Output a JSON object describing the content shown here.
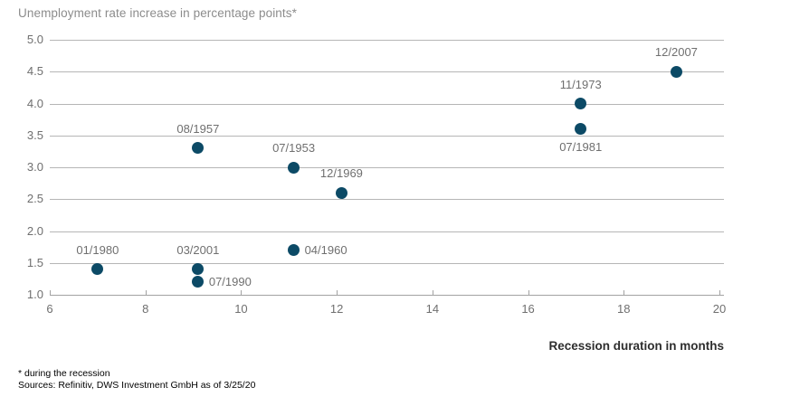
{
  "chart": {
    "title": "Unemployment rate increase in percentage points*",
    "x_axis_title": "Recession duration in months"
  },
  "footnotes": {
    "line1": "* during the recession",
    "line2": "Sources: Refinitiv, DWS Investment GmbH as of 3/25/20"
  },
  "chart_data": {
    "type": "scatter",
    "title": "Unemployment rate increase in percentage points*",
    "xlabel": "Recession duration in months",
    "ylabel": "Unemployment rate increase in percentage points",
    "xlim": [
      6,
      20
    ],
    "ylim": [
      1.0,
      5.0
    ],
    "x_ticks": [
      6,
      8,
      10,
      12,
      14,
      16,
      18,
      20
    ],
    "y_ticks": [
      1.0,
      1.5,
      2.0,
      2.5,
      3.0,
      3.5,
      4.0,
      4.5,
      5.0
    ],
    "grid": "horizontal-only",
    "legend": "none",
    "marker_color": "#0c4a66",
    "gridline_color": "#b6b6b6",
    "axis_color": "#a3a3a3",
    "points": [
      {
        "label": "01/1980",
        "x": 7.0,
        "y": 1.4,
        "label_pos": "above"
      },
      {
        "label": "07/1990",
        "x": 9.1,
        "y": 1.2,
        "label_pos": "right"
      },
      {
        "label": "03/2001",
        "x": 9.1,
        "y": 1.4,
        "label_pos": "above"
      },
      {
        "label": "08/1957",
        "x": 9.1,
        "y": 3.3,
        "label_pos": "above"
      },
      {
        "label": "04/1960",
        "x": 11.1,
        "y": 1.7,
        "label_pos": "right"
      },
      {
        "label": "07/1953",
        "x": 11.1,
        "y": 3.0,
        "label_pos": "above"
      },
      {
        "label": "12/1969",
        "x": 12.1,
        "y": 2.6,
        "label_pos": "above"
      },
      {
        "label": "07/1981",
        "x": 17.1,
        "y": 3.6,
        "label_pos": "below"
      },
      {
        "label": "11/1973",
        "x": 17.1,
        "y": 4.0,
        "label_pos": "above"
      },
      {
        "label": "12/2007",
        "x": 19.1,
        "y": 4.5,
        "label_pos": "above"
      }
    ]
  }
}
